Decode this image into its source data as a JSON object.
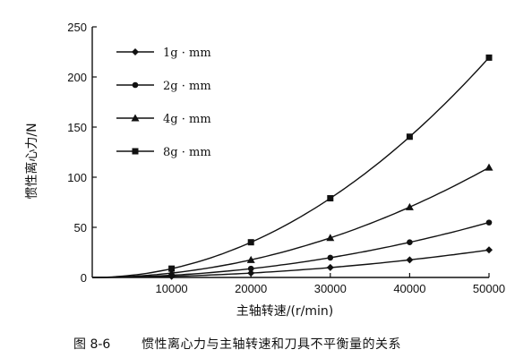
{
  "chart_data": {
    "type": "line",
    "xlabel": "主轴转速/(r/min)",
    "ylabel": "惯性离心力/N",
    "xlim": [
      0,
      50000
    ],
    "ylim": [
      0,
      250
    ],
    "xticks": [
      10000,
      20000,
      30000,
      40000,
      50000
    ],
    "yticks": [
      0,
      50,
      100,
      150,
      200,
      250
    ],
    "legend_position": "top-left",
    "grid": false,
    "series": [
      {
        "name": "1g · mm",
        "marker": "diamond",
        "x": [
          10000,
          20000,
          30000,
          40000,
          50000
        ],
        "values": [
          1.1,
          4.4,
          9.9,
          17.5,
          27.4
        ]
      },
      {
        "name": "2g · mm",
        "marker": "circle",
        "x": [
          10000,
          20000,
          30000,
          40000,
          50000
        ],
        "values": [
          2.2,
          8.8,
          19.7,
          35.1,
          54.8
        ]
      },
      {
        "name": "4g · mm",
        "marker": "triangle",
        "x": [
          10000,
          20000,
          30000,
          40000,
          50000
        ],
        "values": [
          4.4,
          17.5,
          39.5,
          70.2,
          109.7
        ]
      },
      {
        "name": "8g · mm",
        "marker": "square",
        "x": [
          10000,
          20000,
          30000,
          40000,
          50000
        ],
        "values": [
          8.8,
          35.1,
          79.0,
          140.4,
          219.3
        ]
      }
    ]
  },
  "caption": {
    "figure_number": "图 8-6",
    "text": "惯性离心力与主轴转速和刀具不平衡量的关系"
  }
}
